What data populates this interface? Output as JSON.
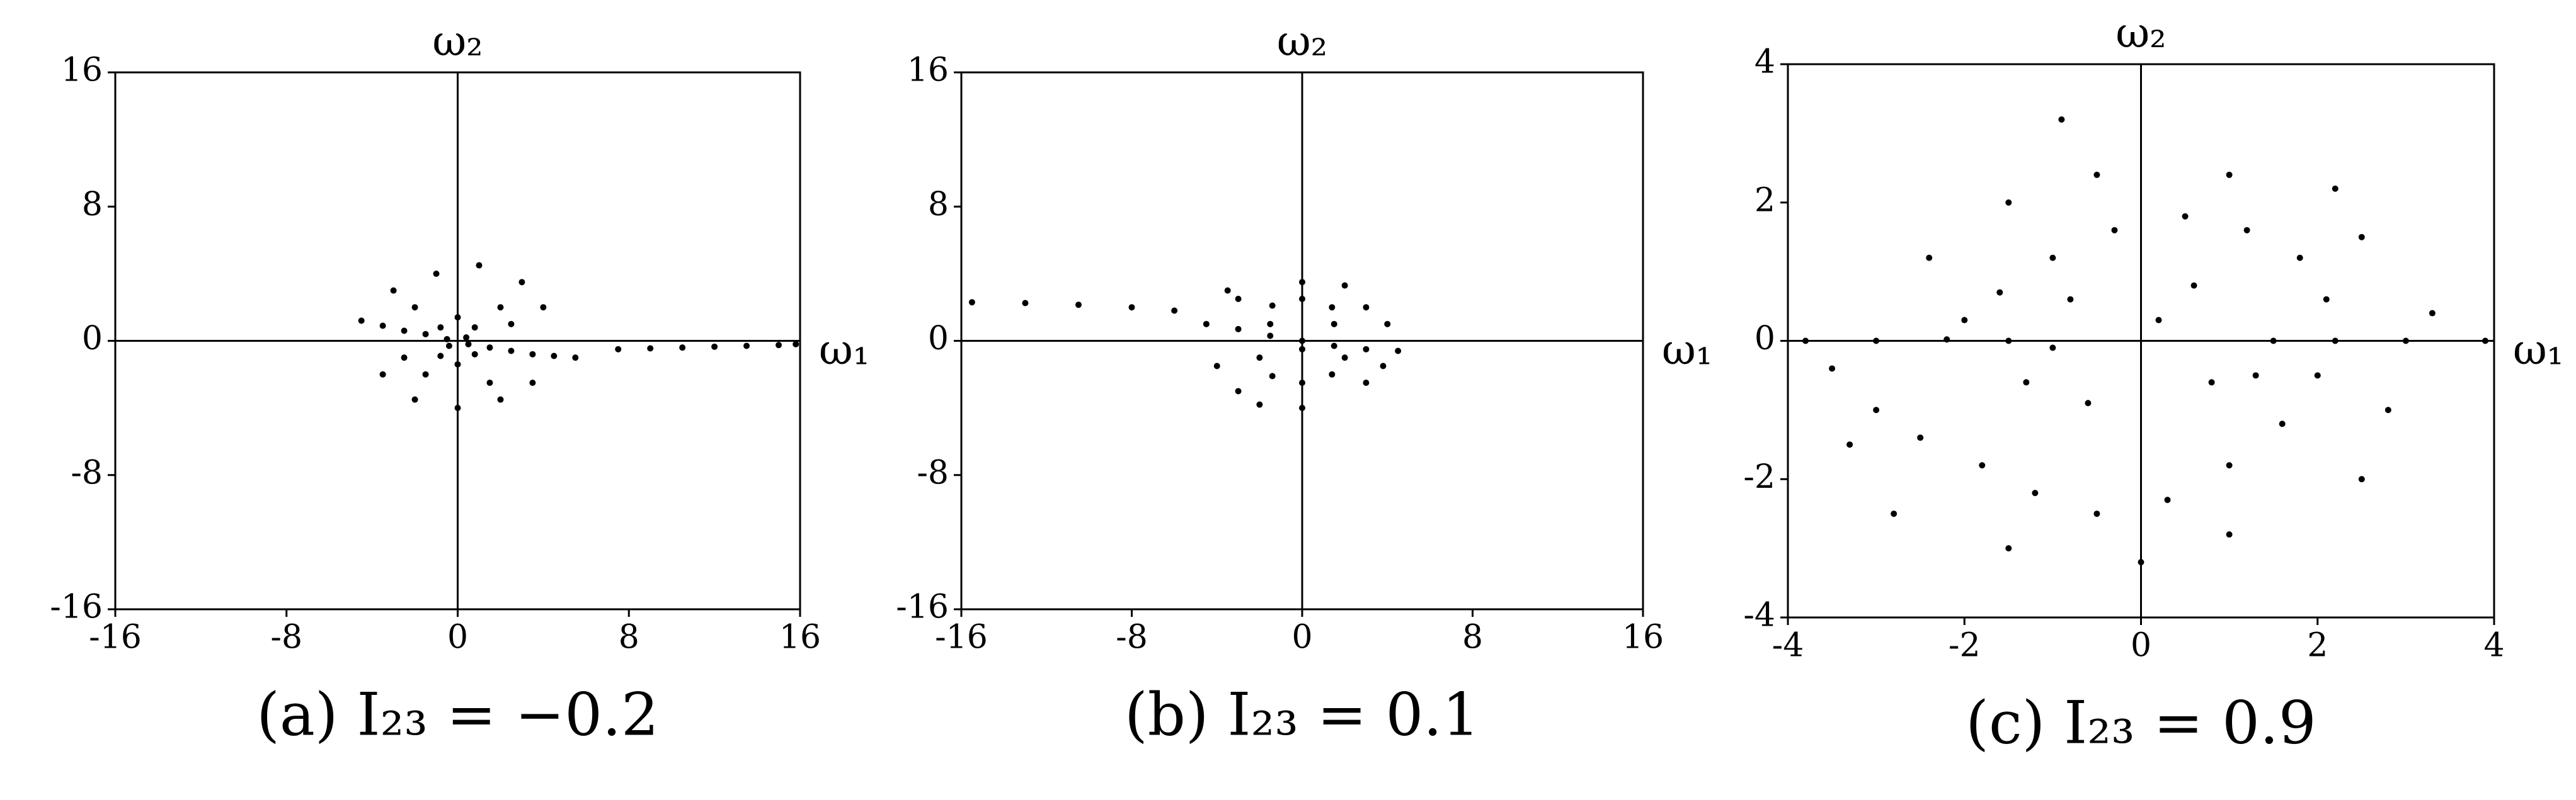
{
  "chart_data": [
    {
      "type": "scatter",
      "x_label": "ω₁",
      "y_label": "ω₂",
      "caption": "(a)  I₂₃ = −0.2",
      "color": "#000000",
      "xlim": [
        -16,
        16
      ],
      "ylim": [
        -16,
        16
      ],
      "xticks": [
        -16,
        -8,
        0,
        8,
        16
      ],
      "yticks": [
        -16,
        -8,
        0,
        8,
        16
      ],
      "x": [
        -4.5,
        -3.5,
        -2.5,
        -1.5,
        -0.5,
        0.5,
        1.5,
        2.5,
        3.5,
        4.5,
        5.5,
        7.5,
        9,
        10.5,
        12,
        13.5,
        15,
        15.8,
        0,
        0.8,
        -0.8,
        0,
        0.8,
        -0.8,
        0.4,
        -0.4,
        -3,
        -1,
        1,
        3,
        4,
        -3.5,
        -2,
        0,
        2,
        3.5,
        -2,
        2,
        -1.5,
        1.5,
        2.5,
        -2.5
      ],
      "y": [
        1.2,
        0.9,
        0.6,
        0.4,
        0.1,
        -0.2,
        -0.4,
        -0.6,
        -0.8,
        -0.9,
        -1.0,
        -0.5,
        -0.45,
        -0.4,
        -0.35,
        -0.3,
        -0.25,
        -0.2,
        1.4,
        0.8,
        0.8,
        -1.4,
        -0.8,
        -0.9,
        0.2,
        -0.3,
        3,
        4,
        4.5,
        3.5,
        2,
        -2,
        -3.5,
        -4,
        -3.5,
        -2.5,
        2,
        2,
        -2,
        -2.5,
        1,
        -1
      ]
    },
    {
      "type": "scatter",
      "x_label": "ω₁",
      "y_label": "ω₂",
      "caption": "(b)  I₂₃ = 0.1",
      "color": "#000000",
      "xlim": [
        -16,
        16
      ],
      "ylim": [
        -16,
        16
      ],
      "xticks": [
        -16,
        -8,
        0,
        8,
        16
      ],
      "yticks": [
        -16,
        -8,
        0,
        8,
        16
      ],
      "x": [
        -15.5,
        -13,
        -10.5,
        -8,
        -6,
        -4.5,
        -3,
        -1.5,
        0,
        1.5,
        3,
        4.5,
        1.5,
        -1.5,
        0,
        0,
        2,
        -2,
        0,
        1.4,
        -1.4,
        1.4,
        -1.4,
        3,
        -3,
        3,
        -3,
        0,
        0,
        2,
        -2,
        4,
        -4,
        3.8,
        -3.5
      ],
      "y": [
        2.3,
        2.25,
        2.15,
        2.0,
        1.8,
        1.0,
        0.7,
        0.3,
        0,
        -0.3,
        -0.5,
        -0.6,
        1,
        1,
        2.5,
        -0.5,
        -1,
        -1,
        -2.5,
        -2,
        -2.1,
        2,
        2.1,
        2,
        2.5,
        -2.5,
        -3,
        3.5,
        -4,
        3.3,
        -3.8,
        1,
        -1.5,
        -1.5,
        3
      ]
    },
    {
      "type": "scatter",
      "x_label": "ω₁",
      "y_label": "ω₂",
      "caption": "(c)  I₂₃ = 0.9",
      "color": "#000000",
      "xlim": [
        -4,
        4
      ],
      "ylim": [
        -4,
        4
      ],
      "xticks": [
        -4,
        -2,
        0,
        2,
        4
      ],
      "yticks": [
        -4,
        -2,
        0,
        2,
        4
      ],
      "x": [
        -3.8,
        -3,
        -2.2,
        -1.5,
        -1,
        1.5,
        2.2,
        3,
        3.9,
        -2,
        -1.6,
        -1,
        -0.3,
        0.5,
        1.2,
        1.8,
        2.1,
        2,
        1.6,
        1,
        0.3,
        -0.5,
        -1.2,
        -1.8,
        -2.5,
        -3,
        -3.3,
        -2.8,
        -1.5,
        0,
        1,
        2.5,
        2.8,
        2.5,
        2.2,
        1,
        -0.5,
        -1.5,
        -2.4,
        -0.8,
        0.6,
        0.8,
        -0.6,
        0.2,
        1.3,
        -1.3,
        -3.5,
        3.3,
        -0.9
      ],
      "y": [
        0,
        0,
        0.02,
        0,
        -0.1,
        0,
        0,
        0,
        0,
        0.3,
        0.7,
        1.2,
        1.6,
        1.8,
        1.6,
        1.2,
        0.6,
        -0.5,
        -1.2,
        -1.8,
        -2.3,
        -2.5,
        -2.2,
        -1.8,
        -1.4,
        -1,
        -1.5,
        -2.5,
        -3,
        -3.2,
        -2.8,
        -2,
        -1,
        1.5,
        2.2,
        2.4,
        2.4,
        2,
        1.2,
        0.6,
        0.8,
        -0.6,
        -0.9,
        0.3,
        -0.5,
        -0.6,
        -0.4,
        0.4,
        3.2
      ]
    }
  ]
}
